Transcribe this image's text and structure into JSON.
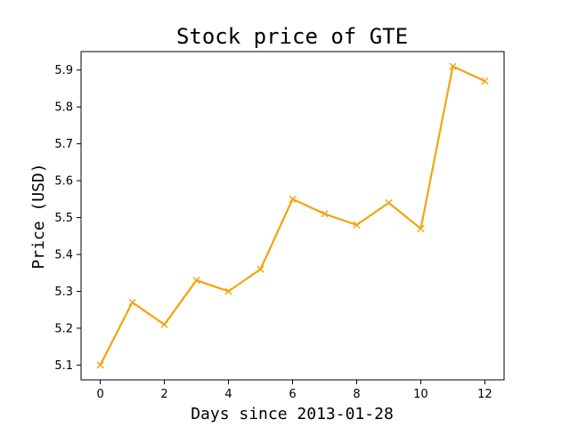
{
  "chart_data": {
    "type": "line",
    "title": "Stock price of GTE",
    "xlabel": "Days since 2013-01-28",
    "ylabel": "Price (USD)",
    "xlim": [
      -0.6,
      12.6
    ],
    "ylim": [
      5.06,
      5.95
    ],
    "x_ticks": [
      0,
      2,
      4,
      6,
      8,
      10,
      12
    ],
    "y_ticks": [
      5.1,
      5.2,
      5.3,
      5.4,
      5.5,
      5.6,
      5.7,
      5.8,
      5.9
    ],
    "grid": false,
    "series": [
      {
        "color": "#f5a30a",
        "marker": "x",
        "x": [
          0,
          1,
          2,
          3,
          4,
          5,
          6,
          7,
          8,
          9,
          10,
          11,
          12
        ],
        "y": [
          5.1,
          5.27,
          5.21,
          5.33,
          5.3,
          5.36,
          5.55,
          5.51,
          5.48,
          5.54,
          5.47,
          5.91,
          5.87
        ]
      }
    ]
  }
}
